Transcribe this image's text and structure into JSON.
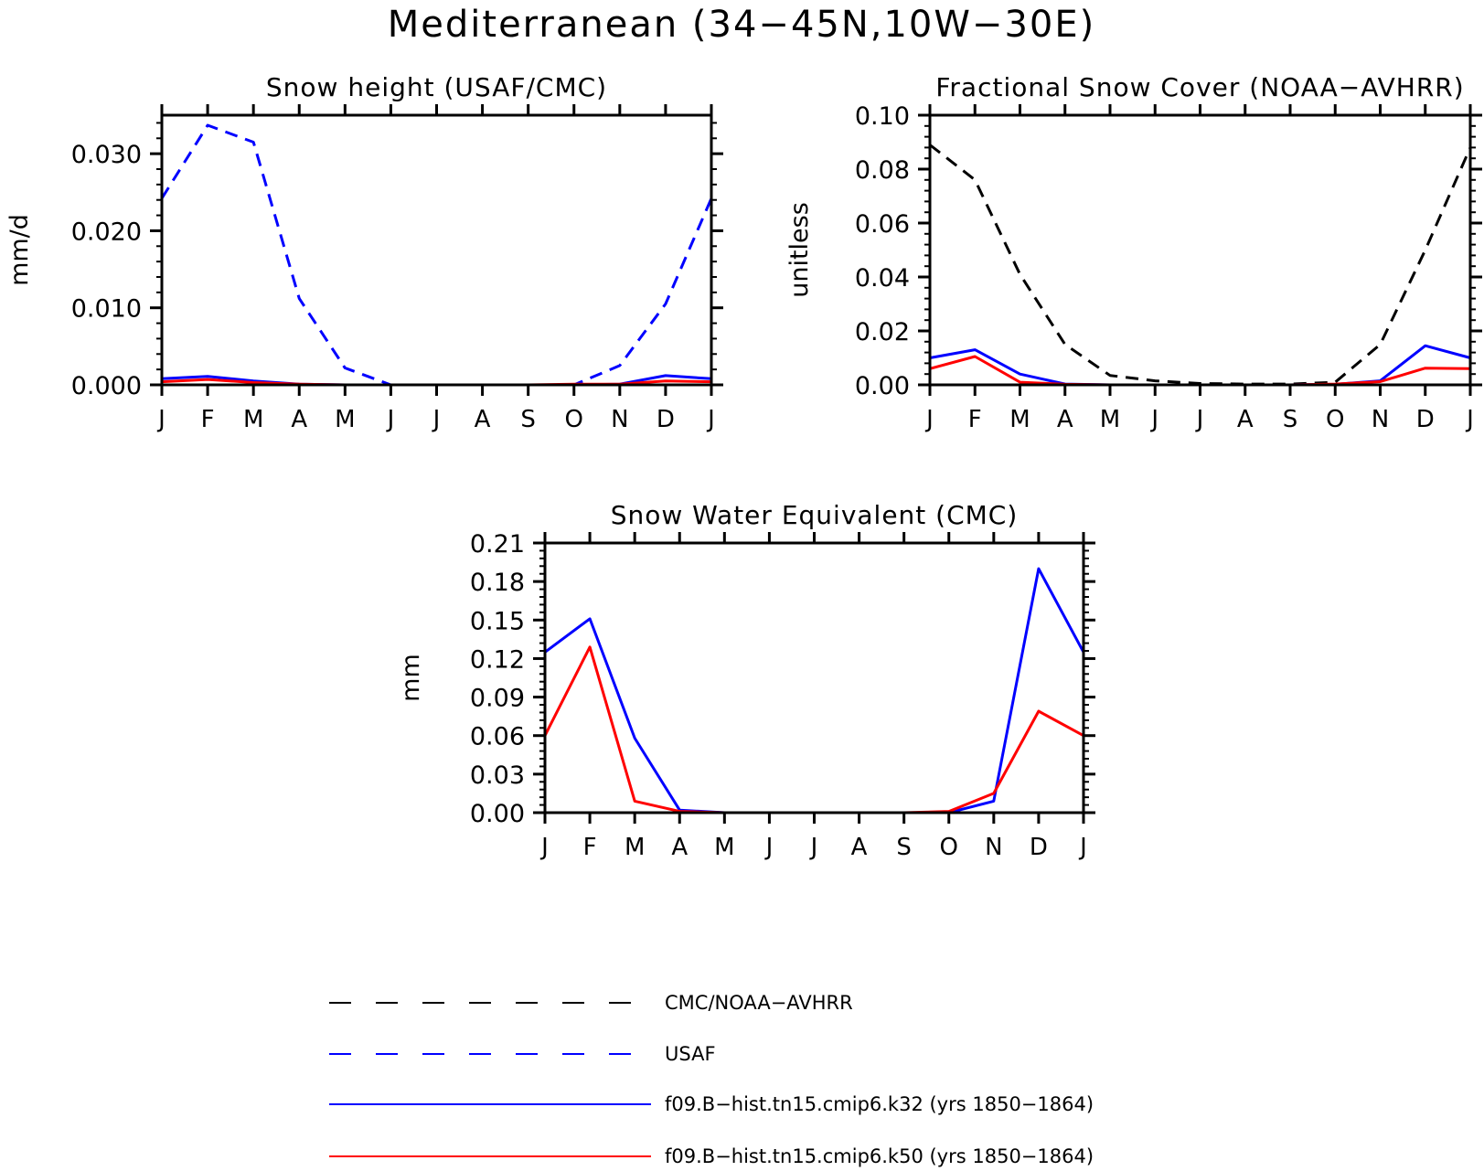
{
  "figure": {
    "title": "Mediterranean (34−45N,10W−30E)"
  },
  "months": [
    "J",
    "F",
    "M",
    "A",
    "M",
    "J",
    "J",
    "A",
    "S",
    "O",
    "N",
    "D",
    "J"
  ],
  "colors": {
    "obs": "#000000",
    "usaf": "#0000ff",
    "k32": "#0000ff",
    "k50": "#ff0000"
  },
  "legend": [
    {
      "label": "CMC/NOAA−AVHRR",
      "color": "#000000",
      "style": "dashed"
    },
    {
      "label": "USAF",
      "color": "#0000ff",
      "style": "dashed"
    },
    {
      "label": "f09.B−hist.tn15.cmip6.k32 (yrs 1850−1864)",
      "color": "#0000ff",
      "style": "solid"
    },
    {
      "label": "f09.B−hist.tn15.cmip6.k50 (yrs 1850−1864)",
      "color": "#ff0000",
      "style": "solid"
    }
  ],
  "chart_data": [
    {
      "type": "line",
      "title": "Snow height (USAF/CMC)",
      "ylabel": "mm/d",
      "xlabel": "",
      "ylim": [
        0,
        0.035
      ],
      "yticks": [
        0,
        0.01,
        0.02,
        0.03
      ],
      "ytick_labels": [
        "0.000",
        "0.010",
        "0.020",
        "0.030"
      ],
      "categories": [
        "J",
        "F",
        "M",
        "A",
        "M",
        "J",
        "J",
        "A",
        "S",
        "O",
        "N",
        "D",
        "J"
      ],
      "series": [
        {
          "key": "usaf",
          "dashed": true,
          "values": [
            0.0242,
            0.0337,
            0.0315,
            0.0112,
            0.0022,
            0.0,
            0.0,
            0.0,
            0.0,
            0.0,
            0.0025,
            0.0105,
            0.0242
          ]
        },
        {
          "key": "k32",
          "dashed": false,
          "values": [
            0.0008,
            0.0011,
            0.0005,
            0.0001,
            0.0,
            0.0,
            0.0,
            0.0,
            0.0,
            0.0,
            0.0001,
            0.0012,
            0.0008
          ]
        },
        {
          "key": "k50",
          "dashed": false,
          "values": [
            0.0004,
            0.0007,
            0.0003,
            0.0001,
            0.0,
            0.0,
            0.0,
            0.0,
            0.0,
            0.0001,
            0.0001,
            0.0005,
            0.0004
          ]
        }
      ]
    },
    {
      "type": "line",
      "title": "Fractional Snow Cover (NOAA−AVHRR)",
      "ylabel": "unitless",
      "xlabel": "",
      "ylim": [
        0,
        0.1
      ],
      "yticks": [
        0,
        0.02,
        0.04,
        0.06,
        0.08,
        0.1
      ],
      "ytick_labels": [
        "0.00",
        "0.02",
        "0.04",
        "0.06",
        "0.08",
        "0.10"
      ],
      "categories": [
        "J",
        "F",
        "M",
        "A",
        "M",
        "J",
        "J",
        "A",
        "S",
        "O",
        "N",
        "D",
        "J"
      ],
      "series": [
        {
          "key": "obs",
          "dashed": true,
          "values": [
            0.089,
            0.076,
            0.041,
            0.015,
            0.0035,
            0.0015,
            0.0005,
            0.0003,
            0.0003,
            0.001,
            0.015,
            0.05,
            0.088
          ]
        },
        {
          "key": "k32",
          "dashed": false,
          "values": [
            0.01,
            0.013,
            0.004,
            0.0003,
            0.0,
            0.0,
            0.0,
            0.0,
            0.0,
            0.0002,
            0.0015,
            0.0145,
            0.01
          ]
        },
        {
          "key": "k50",
          "dashed": false,
          "values": [
            0.006,
            0.0105,
            0.001,
            0.0002,
            0.0,
            0.0,
            0.0,
            0.0,
            0.0,
            0.0003,
            0.0012,
            0.0062,
            0.006
          ]
        }
      ]
    },
    {
      "type": "line",
      "title": "Snow Water Equivalent (CMC)",
      "ylabel": "mm",
      "xlabel": "",
      "ylim": [
        0,
        0.21
      ],
      "yticks": [
        0,
        0.03,
        0.06,
        0.09,
        0.12,
        0.15,
        0.18,
        0.21
      ],
      "ytick_labels": [
        "0.00",
        "0.03",
        "0.06",
        "0.09",
        "0.12",
        "0.15",
        "0.18",
        "0.21"
      ],
      "categories": [
        "J",
        "F",
        "M",
        "A",
        "M",
        "J",
        "J",
        "A",
        "S",
        "O",
        "N",
        "D",
        "J"
      ],
      "series": [
        {
          "key": "obs",
          "dashed": true,
          "values": [
            0.0,
            0.0,
            0.0,
            0.0,
            0.0,
            0.0,
            0.0,
            0.0,
            0.0,
            0.0,
            0.0,
            0.0,
            0.0
          ]
        },
        {
          "key": "k32",
          "dashed": false,
          "values": [
            0.125,
            0.151,
            0.058,
            0.002,
            0.0,
            0.0,
            0.0,
            0.0,
            0.0,
            0.0,
            0.009,
            0.19,
            0.125
          ]
        },
        {
          "key": "k50",
          "dashed": false,
          "values": [
            0.06,
            0.129,
            0.009,
            0.001,
            0.0,
            0.0,
            0.0,
            0.0,
            0.0,
            0.001,
            0.015,
            0.079,
            0.06
          ]
        }
      ]
    }
  ]
}
